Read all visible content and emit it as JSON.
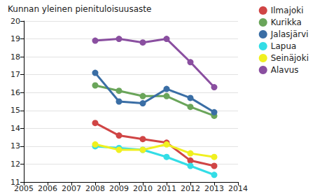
{
  "chart_data": {
    "type": "line",
    "title": "Kunnan yleinen pienituloisuusaste",
    "x": [
      2008,
      2009,
      2010,
      2011,
      2012,
      2013
    ],
    "series": [
      {
        "name": "Ilmajoki",
        "color": "#d04545",
        "values": [
          14.3,
          13.6,
          13.4,
          13.2,
          12.2,
          11.9
        ]
      },
      {
        "name": "Kurikka",
        "color": "#6aa55a",
        "values": [
          16.4,
          16.1,
          15.8,
          15.8,
          15.2,
          14.7
        ]
      },
      {
        "name": "Jalasjärvi",
        "color": "#3a6ea5",
        "values": [
          17.1,
          15.5,
          15.4,
          16.2,
          15.7,
          14.9
        ]
      },
      {
        "name": "Lapua",
        "color": "#33dde6",
        "values": [
          13.0,
          12.9,
          12.8,
          12.4,
          11.9,
          11.4
        ]
      },
      {
        "name": "Seinäjoki",
        "color": "#f0f020",
        "values": [
          13.1,
          12.8,
          12.8,
          13.1,
          12.6,
          12.4
        ]
      },
      {
        "name": "Alavus",
        "color": "#8a4fa0",
        "values": [
          18.9,
          19.0,
          18.8,
          19.0,
          17.7,
          16.3
        ]
      }
    ],
    "xlim": [
      2005,
      2014
    ],
    "xticks": [
      2005,
      2006,
      2007,
      2008,
      2009,
      2010,
      2011,
      2012,
      2013,
      2014
    ],
    "ylim": [
      11,
      20
    ],
    "yticks": [
      11,
      12,
      13,
      14,
      15,
      16,
      17,
      18,
      19,
      20
    ],
    "grid": true,
    "legend": "top-right",
    "marker": "circle"
  }
}
